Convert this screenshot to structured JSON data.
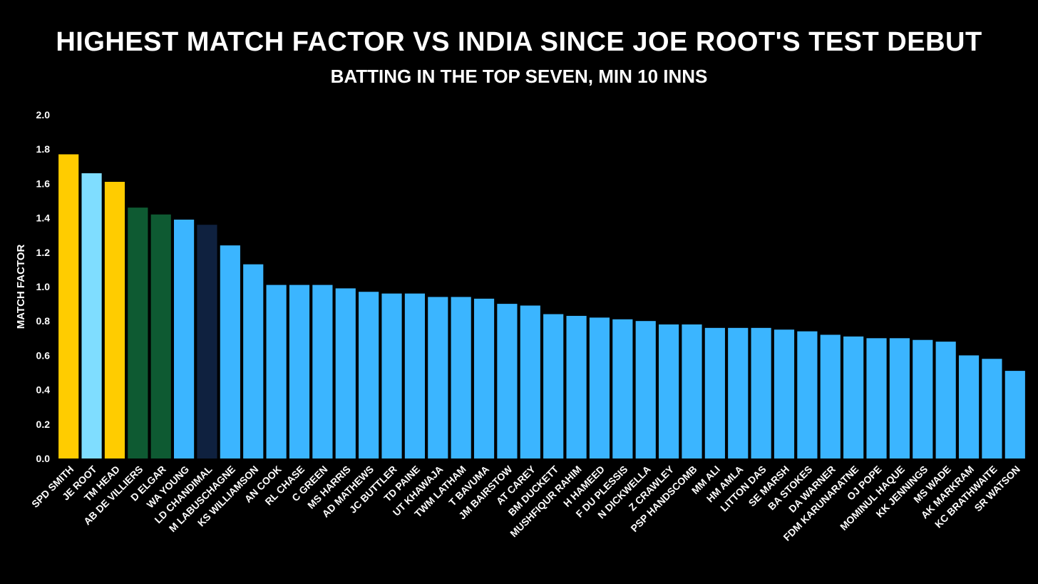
{
  "chart_data": {
    "type": "bar",
    "title": "HIGHEST MATCH FACTOR VS INDIA SINCE JOE ROOT'S TEST DEBUT",
    "subtitle": "BATTING IN THE TOP SEVEN, MIN 10 INNS",
    "xlabel": "",
    "ylabel": "MATCH FACTOR",
    "ylim": [
      0,
      2.0
    ],
    "yticks": [
      "0.0",
      "0.2",
      "0.4",
      "0.6",
      "0.8",
      "1.0",
      "1.2",
      "1.4",
      "1.6",
      "1.8",
      "2.0"
    ],
    "categories": [
      "SPD SMITH",
      "JE ROOT",
      "TM HEAD",
      "AB DE VILLIERS",
      "D ELGAR",
      "WA YOUNG",
      "LD CHANDIMAL",
      "M LABUSCHAGNE",
      "KS WILLIAMSON",
      "AN COOK",
      "RL CHASE",
      "C GREEN",
      "MS HARRIS",
      "AD MATHEWS",
      "JC BUTTLER",
      "TD PAINE",
      "UT KHAWAJA",
      "TWM LATHAM",
      "T BAVUMA",
      "JM BAIRSTOW",
      "AT CAREY",
      "BM DUCKETT",
      "MUSHFIQUR RAHIM",
      "H HAMEED",
      "F DU PLESSIS",
      "N DICKWELLA",
      "Z CRAWLEY",
      "PSP HANDSCOMB",
      "MM ALI",
      "HM AMLA",
      "LITTON DAS",
      "SE MARSH",
      "BA STOKES",
      "DA WARNER",
      "FDM KARUNARATNE",
      "OJ POPE",
      "MOMINUL HAQUE",
      "KK JENNINGS",
      "MS WADE",
      "AK MARKRAM",
      "KC BRATHWAITE",
      "SR WATSON"
    ],
    "values": [
      1.77,
      1.66,
      1.61,
      1.46,
      1.42,
      1.39,
      1.36,
      1.24,
      1.13,
      1.01,
      1.01,
      1.01,
      0.99,
      0.97,
      0.96,
      0.96,
      0.94,
      0.94,
      0.93,
      0.9,
      0.89,
      0.84,
      0.83,
      0.82,
      0.81,
      0.8,
      0.78,
      0.78,
      0.76,
      0.76,
      0.76,
      0.75,
      0.74,
      0.72,
      0.71,
      0.7,
      0.7,
      0.69,
      0.68,
      0.6,
      0.58,
      0.51
    ],
    "colors": [
      "#FFCC00",
      "#7FDDFF",
      "#FFCC00",
      "#0E5A32",
      "#0E5A32",
      "#3BB5FF",
      "#0F213F",
      "#3BB5FF",
      "#3BB5FF",
      "#3BB5FF",
      "#3BB5FF",
      "#3BB5FF",
      "#3BB5FF",
      "#3BB5FF",
      "#3BB5FF",
      "#3BB5FF",
      "#3BB5FF",
      "#3BB5FF",
      "#3BB5FF",
      "#3BB5FF",
      "#3BB5FF",
      "#3BB5FF",
      "#3BB5FF",
      "#3BB5FF",
      "#3BB5FF",
      "#3BB5FF",
      "#3BB5FF",
      "#3BB5FF",
      "#3BB5FF",
      "#3BB5FF",
      "#3BB5FF",
      "#3BB5FF",
      "#3BB5FF",
      "#3BB5FF",
      "#3BB5FF",
      "#3BB5FF",
      "#3BB5FF",
      "#3BB5FF",
      "#3BB5FF",
      "#3BB5FF",
      "#3BB5FF",
      "#3BB5FF"
    ],
    "grid": false,
    "legend": "none"
  }
}
